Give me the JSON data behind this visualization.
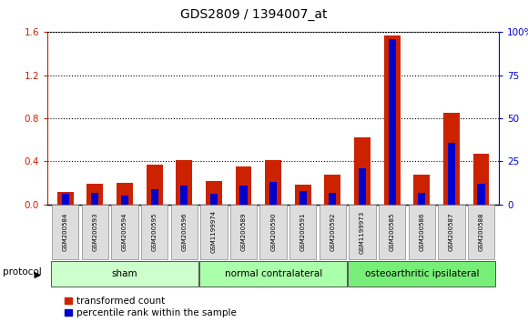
{
  "title": "GDS2809 / 1394007_at",
  "categories": [
    "GSM200584",
    "GSM200593",
    "GSM200594",
    "GSM200595",
    "GSM200596",
    "GSM1199974",
    "GSM200589",
    "GSM200590",
    "GSM200591",
    "GSM200592",
    "GSM1199973",
    "GSM200585",
    "GSM200586",
    "GSM200587",
    "GSM200588"
  ],
  "red_values": [
    0.12,
    0.19,
    0.2,
    0.37,
    0.41,
    0.22,
    0.35,
    0.41,
    0.18,
    0.28,
    0.62,
    1.57,
    0.28,
    0.85,
    0.47
  ],
  "blue_percentile": [
    6,
    7,
    5,
    9,
    11,
    6,
    11,
    13,
    8,
    7,
    21,
    96,
    7,
    36,
    12
  ],
  "groups": [
    {
      "label": "sham",
      "start": 0,
      "end": 4
    },
    {
      "label": "normal contralateral",
      "start": 5,
      "end": 9
    },
    {
      "label": "osteoarthritic ipsilateral",
      "start": 10,
      "end": 14
    }
  ],
  "group_colors": [
    "#ccffcc",
    "#aaffaa",
    "#77ee77"
  ],
  "ylim_left": [
    0,
    1.6
  ],
  "ylim_right": [
    0,
    100
  ],
  "yticks_left": [
    0,
    0.4,
    0.8,
    1.2,
    1.6
  ],
  "yticks_right": [
    0,
    25,
    50,
    75,
    100
  ],
  "ytick_labels_right": [
    "0",
    "25",
    "50",
    "75",
    "100%"
  ],
  "red_color": "#cc2200",
  "blue_color": "#0000cc",
  "left_axis_color": "#cc2200",
  "right_axis_color": "#0000cc",
  "bg_color": "#ffffff",
  "legend_red": "transformed count",
  "legend_blue": "percentile rank within the sample",
  "protocol_label": "protocol",
  "tick_label_bg": "#dddddd",
  "red_bar_width": 0.55,
  "blue_bar_width": 0.25
}
